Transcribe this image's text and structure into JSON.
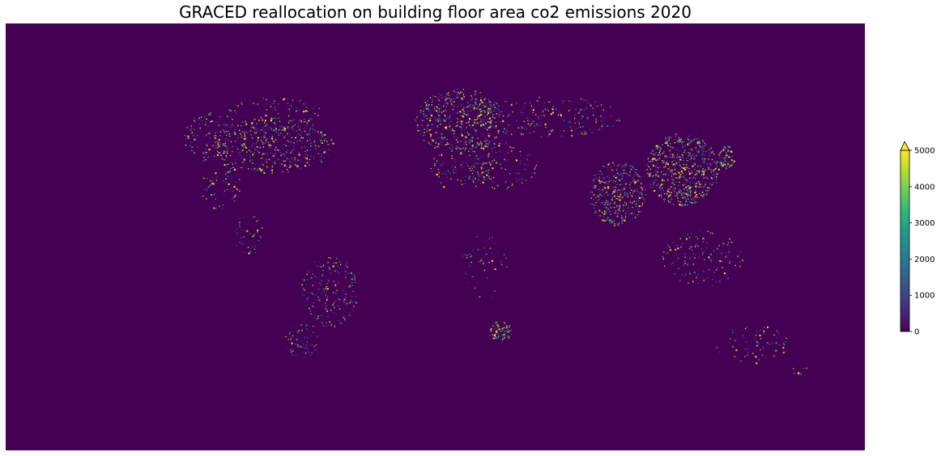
{
  "title": "GRACED reallocation on building floor area co2 emissions 2020",
  "colorbar": {
    "colormap": "viridis",
    "extend": "max",
    "vmin": 0,
    "vmax": 5000,
    "ticks": [
      "0",
      "1000",
      "2000",
      "3000",
      "4000",
      "5000"
    ],
    "colors": [
      "#440154",
      "#482878",
      "#3e4989",
      "#31688e",
      "#26828e",
      "#1f9e89",
      "#35b779",
      "#6ece58",
      "#b5de2b",
      "#fde725"
    ]
  },
  "map": {
    "background_color": "#440154",
    "high_emission_regions": [
      "United States",
      "Europe",
      "India",
      "China",
      "Japan",
      "Southeast Asia",
      "Brazil",
      "South Africa",
      "Australia"
    ]
  }
}
